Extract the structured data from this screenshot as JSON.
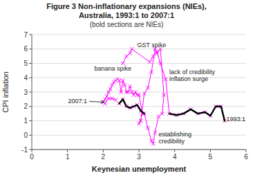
{
  "chart_data": {
    "type": "line",
    "title": "Figure 3 Non-inflationary expansions (NIEs),\nAustralia, 1993:1 to 2007:1",
    "subtitle": "(bold sections are NIEs)",
    "xlabel": "Keynesian unemployment",
    "ylabel": "CPI inflation",
    "xlim": [
      0,
      6
    ],
    "ylim": [
      -1,
      7
    ],
    "xticks": [
      0,
      1,
      2,
      3,
      4,
      5,
      6
    ],
    "yticks": [
      -1,
      0,
      1,
      2,
      3,
      4,
      5,
      6,
      7
    ],
    "grid": "y",
    "series": [
      {
        "color": "#FF00FF",
        "marker": "x",
        "line_style": "solid",
        "x": [
          5.4,
          5.3,
          5.15,
          5.0,
          4.85,
          4.65,
          4.45,
          4.25,
          4.05,
          3.85,
          3.75,
          3.6,
          3.5,
          3.45,
          3.35,
          3.25,
          3.15,
          3.05,
          3.0,
          3.1,
          3.0,
          2.95,
          2.9,
          2.85,
          2.8,
          2.75,
          2.7,
          2.65,
          2.6,
          2.55,
          2.5,
          2.45,
          2.4,
          2.35,
          2.3,
          2.25,
          2.2,
          2.15,
          2.1,
          2.05,
          2.0,
          2.05,
          2.15,
          2.25,
          2.35,
          2.45,
          2.55,
          2.65,
          2.75,
          2.85,
          2.95,
          3.05,
          3.15,
          3.25,
          3.35,
          3.4,
          3.45,
          3.55,
          3.65,
          3.7,
          3.6,
          3.5,
          3.4,
          3.3,
          2.8,
          2.75,
          2.65,
          2.55
        ],
        "values": [
          1.0,
          2.0,
          2.0,
          1.35,
          1.6,
          1.5,
          1.8,
          1.5,
          1.4,
          1.5,
          3.9,
          5.0,
          5.8,
          6.0,
          4.4,
          3.3,
          2.9,
          1.0,
          0.8,
          1.5,
          2.8,
          2.8,
          3.0,
          2.8,
          3.0,
          3.4,
          3.0,
          3.0,
          3.5,
          3.8,
          3.0,
          3.8,
          3.9,
          3.8,
          3.7,
          3.5,
          3.2,
          3.0,
          2.7,
          2.5,
          2.3,
          2.2,
          2.55,
          2.55,
          2.45,
          2.2,
          2.5,
          2.0,
          1.9,
          2.0,
          2.1,
          1.7,
          1.5,
          0.5,
          -0.4,
          -0.6,
          0.2,
          1.3,
          1.5,
          2.8,
          6.0,
          5.7,
          5.5,
          5.1,
          6.0,
          5.7,
          5.5,
          5.0
        ]
      },
      {
        "color": "#000000",
        "line_style": "bold",
        "x": [
          5.4,
          5.3,
          5.15,
          5.0,
          4.85,
          4.65,
          4.45,
          4.25,
          4.05,
          3.85
        ],
        "values": [
          1.0,
          2.0,
          2.0,
          1.35,
          1.6,
          1.5,
          1.8,
          1.5,
          1.4,
          1.5
        ]
      },
      {
        "color": "#000000",
        "line_style": "bold",
        "x": [
          2.45,
          2.55,
          2.65,
          2.75,
          2.85,
          2.95,
          3.05,
          3.15
        ],
        "values": [
          2.2,
          2.5,
          2.0,
          1.9,
          2.0,
          2.1,
          1.7,
          1.5
        ]
      }
    ],
    "annotations": [
      {
        "text": "GST spike",
        "x": 2.95,
        "y": 6.15
      },
      {
        "text": "banana spike",
        "x": 1.75,
        "y": 4.5
      },
      {
        "text": "lack of credibility\ninflation surge",
        "x": 3.85,
        "y": 3.75
      },
      {
        "text": "establishing\ncredibility",
        "x": 3.55,
        "y": -0.55
      },
      {
        "text": "1993:1",
        "x": 5.45,
        "y": 1.0
      },
      {
        "text": "2007:1",
        "x": 1.55,
        "y": 2.35,
        "arrow": [
          2.05,
          2.3
        ]
      }
    ]
  }
}
